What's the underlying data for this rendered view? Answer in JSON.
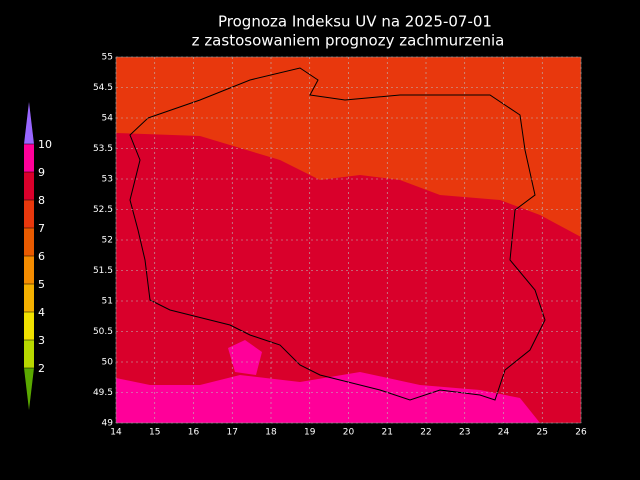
{
  "title": [
    "Prognoza Indeksu UV na 2025-07-01",
    "z zastosowaniem prognozy zachmurzenia"
  ],
  "map": {
    "xlim": [
      14,
      26
    ],
    "ylim": [
      49,
      55
    ],
    "xticks": [
      14,
      15,
      16,
      17,
      18,
      19,
      20,
      21,
      22,
      23,
      24,
      25,
      26
    ],
    "yticks": [
      49,
      49.5,
      50,
      50.5,
      51,
      51.5,
      52,
      52.5,
      53,
      53.5,
      54,
      54.5,
      55
    ],
    "grid": true
  },
  "legend": {
    "levels": [
      2,
      3,
      4,
      5,
      6,
      7,
      8,
      9,
      10
    ],
    "colors": [
      "#5aa800",
      "#b8d800",
      "#f0e000",
      "#f4b000",
      "#f48c00",
      "#e85a00",
      "#e8380d",
      "#d9002b",
      "#ff0099",
      "#9966ff"
    ]
  }
}
